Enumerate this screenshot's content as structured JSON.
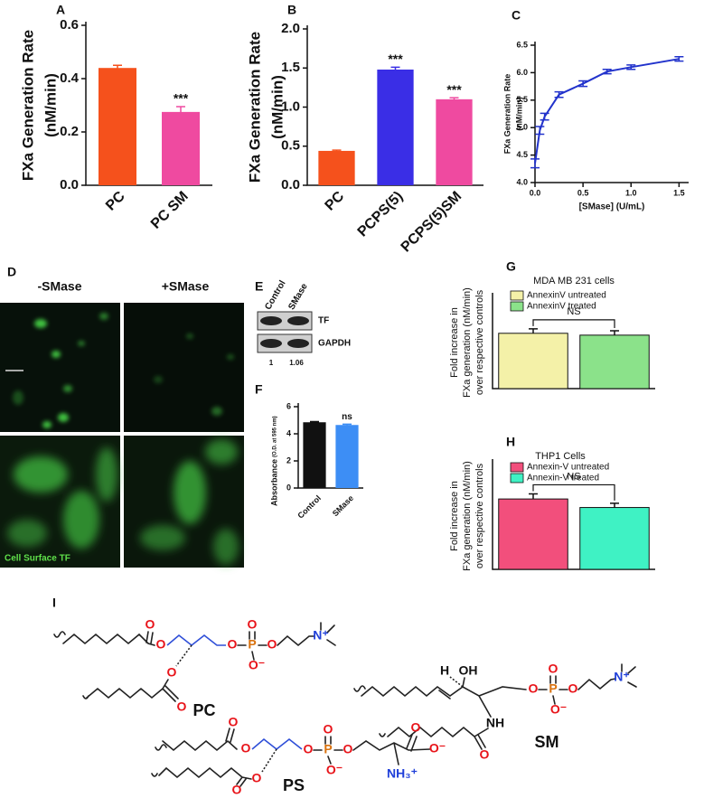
{
  "chart_data": [
    {
      "panel": "A",
      "type": "bar",
      "ylabel": [
        "FXa Generation Rate",
        "(nM/min)"
      ],
      "categories": [
        "PC",
        "PC SM"
      ],
      "values": [
        0.44,
        0.275
      ],
      "errors": [
        0.01,
        0.02
      ],
      "colors": [
        "#f5511c",
        "#ef4aa0"
      ],
      "value_annotations": [
        null,
        "***"
      ],
      "ylim": [
        0,
        0.6
      ],
      "yticks": [
        {
          "value": 0,
          "label": "0.0"
        },
        0.2,
        0.4,
        0.6
      ]
    },
    {
      "panel": "B",
      "type": "bar",
      "ylabel": [
        "FXa Generation Rate",
        "(nM/min)"
      ],
      "categories": [
        "PC",
        "PCPS(5)",
        "PCPS(5)SM"
      ],
      "values": [
        0.44,
        1.48,
        1.1
      ],
      "errors": [
        0.01,
        0.03,
        0.02
      ],
      "colors": [
        "#f5511c",
        "#3a2ee6",
        "#ef4aa0"
      ],
      "value_annotations": [
        null,
        "***",
        "***"
      ],
      "ylim": [
        0,
        2
      ],
      "yticks": [
        {
          "value": 0,
          "label": "0.0"
        },
        0.5,
        {
          "value": 1,
          "label": "1.0"
        },
        1.5,
        {
          "value": 2,
          "label": "2.0"
        }
      ]
    },
    {
      "panel": "C",
      "type": "line",
      "ylabel": [
        "FXa Generation Rate",
        "(nM/min)"
      ],
      "xlabel": "[SMase] (U/mL)",
      "x": [
        0,
        0.05,
        0.1,
        0.25,
        0.5,
        0.75,
        1,
        1.5
      ],
      "values": [
        4.35,
        4.95,
        5.2,
        5.6,
        5.8,
        6.02,
        6.1,
        6.25
      ],
      "errors": [
        0.08,
        0.07,
        0.06,
        0.05,
        0.05,
        0.04,
        0.04,
        0.04
      ],
      "color": "#2233cc",
      "xlim": [
        0,
        1.6
      ],
      "xticks": [
        {
          "value": 0,
          "label": "0.0"
        },
        0.5,
        {
          "value": 1,
          "label": "1.0"
        },
        1.5
      ],
      "ylim": [
        4,
        6.5
      ],
      "yticks": [
        {
          "value": 4,
          "label": "4.0"
        },
        4.5,
        {
          "value": 5,
          "label": "5.0"
        },
        5.5,
        {
          "value": 6,
          "label": "6.0"
        },
        6.5
      ]
    },
    {
      "panel": "F",
      "type": "bar",
      "ylabel": [
        "Absorbance"
      ],
      "ylabel_note": "(O.D. at 595 nm)",
      "categories": [
        "Control",
        "SMase"
      ],
      "values": [
        4.85,
        4.65
      ],
      "errors": [
        0.05,
        0.06
      ],
      "colors": [
        "#111111",
        "#3d8ef5"
      ],
      "value_annotations": [
        null,
        "ns"
      ],
      "ylim": [
        0,
        6
      ],
      "yticks": [
        0,
        2,
        4,
        6
      ]
    },
    {
      "panel": "G",
      "type": "bar",
      "title": "MDA MB 231 cells",
      "ylabel": [
        "Fold increase in",
        "FXa generation (nM/min)",
        "over respective controls"
      ],
      "series": [
        {
          "name": "AnnexinV untreated",
          "color": "#f4f1a8",
          "values": [
            1.5
          ],
          "errors": [
            0.12
          ]
        },
        {
          "name": "AnnexinV treated",
          "color": "#8be28a",
          "values": [
            1.45
          ],
          "errors": [
            0.12
          ]
        }
      ],
      "annotation": "NS",
      "ylim": [
        0,
        2.5
      ]
    },
    {
      "panel": "H",
      "type": "bar",
      "title": "THP1 Cells",
      "ylabel": [
        "Fold increase in",
        "FXa generation (nM/min)",
        "over respective controls"
      ],
      "series": [
        {
          "name": "Annexin-V untreated",
          "color": "#f24f7c",
          "values": [
            1.65
          ],
          "errors": [
            0.12
          ]
        },
        {
          "name": "Annexin-V treated",
          "color": "#3ff2c4",
          "values": [
            1.45
          ],
          "errors": [
            0.1
          ]
        }
      ],
      "annotation": "NS",
      "ylim": [
        0,
        2.5
      ]
    }
  ],
  "microscopy": {
    "panel": "D",
    "columns": [
      "-SMase",
      "+SMase"
    ],
    "stain": "Cell Surface TF"
  },
  "blot": {
    "panel": "E",
    "lanes": [
      "Control",
      "SMase"
    ],
    "bands": [
      "TF",
      "GAPDH"
    ],
    "quantification": [
      "1",
      "1.06"
    ]
  },
  "structures": {
    "panel": "I",
    "molecules": [
      {
        "name": "PC",
        "atoms": [
          "O",
          "O",
          "O",
          "P",
          "O",
          "O⁻",
          "O",
          "N⁺",
          "O",
          "O"
        ]
      },
      {
        "name": "SM",
        "atoms": [
          "H",
          "OH",
          "O",
          "P",
          "O",
          "O⁻",
          "O",
          "N⁺",
          "NH",
          "O"
        ]
      },
      {
        "name": "PS",
        "atoms": [
          "O",
          "O",
          "O",
          "P",
          "O",
          "O⁻",
          "O",
          "O",
          "O⁻",
          "NH₃⁺",
          "O",
          "O"
        ]
      }
    ]
  }
}
